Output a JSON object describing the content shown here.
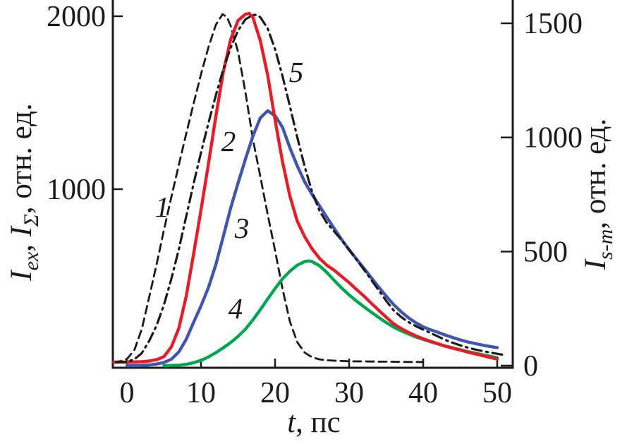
{
  "figure": {
    "background": "#ffffff",
    "axis_color": "#1a1a1a",
    "x_axis": {
      "label_segments": [
        {
          "text": "t",
          "italic": true,
          "sub": false
        },
        {
          "text": ", пс",
          "italic": false,
          "sub": false
        }
      ],
      "tick_values": [
        0,
        10,
        20,
        30,
        40,
        50
      ]
    },
    "y_axis_left": {
      "label_segments": [
        {
          "text": "I",
          "italic": true,
          "sub": false
        },
        {
          "text": "ex",
          "italic": true,
          "sub": true
        },
        {
          "text": ", ",
          "italic": false,
          "sub": false
        },
        {
          "text": "I",
          "italic": true,
          "sub": false
        },
        {
          "text": "Σ",
          "italic": true,
          "sub": true
        },
        {
          "text": ", отн. ед.",
          "italic": false,
          "sub": false
        }
      ],
      "tick_values": [
        1000,
        2000
      ]
    },
    "y_axis_right": {
      "label_segments": [
        {
          "text": "I",
          "italic": true,
          "sub": false
        },
        {
          "text": "s-m",
          "italic": true,
          "sub": true
        },
        {
          "text": ", отн. ед.",
          "italic": false,
          "sub": false
        }
      ],
      "tick_values": [
        0,
        500,
        1000,
        1500
      ]
    }
  },
  "chart_data": {
    "type": "line",
    "title": "",
    "xlabel": "t, пс",
    "ylabel_left": "Iex, IΣ, отн. ед.",
    "ylabel_right": "Is-m, отн. ед.",
    "x_range": [
      -2,
      52.3
    ],
    "y_left_range": [
      0,
      2100
    ],
    "y_right_range": [
      0,
      1560
    ],
    "grid": false,
    "legend": "none (curves numbered 1–5 on plot)",
    "series": [
      {
        "label": "1",
        "style": "dashed",
        "color": "#1a1a1a",
        "axis": "left",
        "points": [
          [
            -1.8,
            0
          ],
          [
            -1,
            5
          ],
          [
            0,
            18
          ],
          [
            1,
            70
          ],
          [
            2,
            190
          ],
          [
            3,
            375
          ],
          [
            4,
            565
          ],
          [
            5,
            765
          ],
          [
            6,
            955
          ],
          [
            7,
            1140
          ],
          [
            8,
            1320
          ],
          [
            9,
            1495
          ],
          [
            10,
            1665
          ],
          [
            11,
            1820
          ],
          [
            12,
            1950
          ],
          [
            12.9,
            2012
          ],
          [
            13.5,
            1995
          ],
          [
            14,
            1945
          ],
          [
            15,
            1795
          ],
          [
            16,
            1560
          ],
          [
            17,
            1290
          ],
          [
            18,
            1075
          ],
          [
            19,
            855
          ],
          [
            20,
            645
          ],
          [
            21,
            425
          ],
          [
            22,
            235
          ],
          [
            23,
            115
          ],
          [
            24,
            55
          ],
          [
            25,
            28
          ],
          [
            26,
            16
          ],
          [
            27,
            11
          ],
          [
            28,
            8
          ],
          [
            30,
            5
          ],
          [
            32,
            4
          ],
          [
            34,
            3
          ],
          [
            36,
            2
          ],
          [
            38,
            1
          ],
          [
            40,
            1
          ]
        ]
      },
      {
        "label": "2",
        "style": "solid",
        "color": "#e81c24",
        "axis": "left",
        "points": [
          [
            -1.8,
            0
          ],
          [
            0,
            0
          ],
          [
            2,
            2
          ],
          [
            3,
            6
          ],
          [
            4,
            14
          ],
          [
            5,
            32
          ],
          [
            6,
            88
          ],
          [
            7,
            195
          ],
          [
            8,
            380
          ],
          [
            9,
            625
          ],
          [
            10,
            880
          ],
          [
            11,
            1145
          ],
          [
            12,
            1420
          ],
          [
            13,
            1675
          ],
          [
            14,
            1865
          ],
          [
            15,
            1975
          ],
          [
            16,
            2012
          ],
          [
            16.5,
            2016
          ],
          [
            17,
            1995
          ],
          [
            18,
            1860
          ],
          [
            19,
            1660
          ],
          [
            20,
            1400
          ],
          [
            21,
            1160
          ],
          [
            22,
            960
          ],
          [
            23,
            815
          ],
          [
            24,
            725
          ],
          [
            25,
            655
          ],
          [
            26,
            600
          ],
          [
            27,
            560
          ],
          [
            28,
            530
          ],
          [
            29,
            495
          ],
          [
            30,
            460
          ],
          [
            31,
            420
          ],
          [
            32,
            382
          ],
          [
            33,
            340
          ],
          [
            34,
            300
          ],
          [
            35,
            260
          ],
          [
            36,
            222
          ],
          [
            37,
            195
          ],
          [
            38,
            172
          ],
          [
            39,
            152
          ],
          [
            40,
            135
          ],
          [
            41,
            120
          ],
          [
            42,
            106
          ],
          [
            43,
            92
          ],
          [
            44,
            80
          ],
          [
            45,
            70
          ],
          [
            46,
            58
          ],
          [
            47,
            48
          ],
          [
            48,
            38
          ],
          [
            49,
            27
          ],
          [
            50,
            18
          ]
        ]
      },
      {
        "label": "3",
        "style": "solid",
        "color": "#4055b0",
        "axis": "right",
        "points": [
          [
            0,
            0
          ],
          [
            2,
            1
          ],
          [
            3,
            3
          ],
          [
            4,
            7
          ],
          [
            5,
            14
          ],
          [
            6,
            28
          ],
          [
            7,
            60
          ],
          [
            8,
            115
          ],
          [
            9,
            190
          ],
          [
            10,
            262
          ],
          [
            11,
            342
          ],
          [
            12,
            442
          ],
          [
            13,
            565
          ],
          [
            14,
            690
          ],
          [
            15,
            800
          ],
          [
            16,
            905
          ],
          [
            17,
            1005
          ],
          [
            18,
            1085
          ],
          [
            19,
            1117
          ],
          [
            20,
            1095
          ],
          [
            21,
            1045
          ],
          [
            22,
            955
          ],
          [
            23,
            875
          ],
          [
            24,
            805
          ],
          [
            25,
            750
          ],
          [
            26,
            700
          ],
          [
            27,
            650
          ],
          [
            28,
            600
          ],
          [
            29,
            552
          ],
          [
            30,
            508
          ],
          [
            31,
            467
          ],
          [
            32,
            427
          ],
          [
            33,
            385
          ],
          [
            34,
            344
          ],
          [
            35,
            305
          ],
          [
            36,
            268
          ],
          [
            37,
            237
          ],
          [
            38,
            210
          ],
          [
            39,
            188
          ],
          [
            40,
            170
          ],
          [
            41,
            157
          ],
          [
            42,
            146
          ],
          [
            43,
            134
          ],
          [
            44,
            123
          ],
          [
            45,
            113
          ],
          [
            46,
            104
          ],
          [
            47,
            97
          ],
          [
            48,
            90
          ],
          [
            49,
            84
          ],
          [
            50,
            79
          ]
        ]
      },
      {
        "label": "4",
        "style": "solid",
        "color": "#00a650",
        "axis": "right",
        "points": [
          [
            5,
            0
          ],
          [
            7,
            2
          ],
          [
            8,
            6
          ],
          [
            9,
            13
          ],
          [
            10,
            23
          ],
          [
            11,
            38
          ],
          [
            12,
            57
          ],
          [
            13,
            78
          ],
          [
            14,
            101
          ],
          [
            15,
            128
          ],
          [
            16,
            160
          ],
          [
            17,
            200
          ],
          [
            18,
            245
          ],
          [
            19,
            292
          ],
          [
            20,
            338
          ],
          [
            21,
            380
          ],
          [
            22,
            414
          ],
          [
            23,
            440
          ],
          [
            24,
            456
          ],
          [
            24.6,
            459
          ],
          [
            25,
            456
          ],
          [
            26,
            438
          ],
          [
            27,
            408
          ],
          [
            28,
            373
          ],
          [
            29,
            340
          ],
          [
            30,
            310
          ],
          [
            31,
            283
          ],
          [
            32,
            258
          ],
          [
            33,
            234
          ],
          [
            34,
            211
          ],
          [
            35,
            189
          ],
          [
            36,
            169
          ],
          [
            37,
            153
          ],
          [
            38,
            139
          ],
          [
            39,
            126
          ],
          [
            40,
            115
          ],
          [
            41,
            105
          ],
          [
            42,
            95
          ],
          [
            43,
            86
          ],
          [
            44,
            78
          ],
          [
            45,
            70
          ],
          [
            46,
            62
          ],
          [
            47,
            55
          ],
          [
            48,
            48
          ],
          [
            49,
            41
          ],
          [
            50,
            35
          ]
        ]
      },
      {
        "label": "5",
        "style": "dash-dot",
        "color": "#1a1a1a",
        "axis": "left",
        "points": [
          [
            -1.5,
            0
          ],
          [
            0,
            2
          ],
          [
            1,
            16
          ],
          [
            2,
            52
          ],
          [
            3,
            122
          ],
          [
            4,
            212
          ],
          [
            5,
            332
          ],
          [
            6,
            482
          ],
          [
            7,
            652
          ],
          [
            8,
            842
          ],
          [
            9,
            1032
          ],
          [
            10,
            1212
          ],
          [
            11,
            1382
          ],
          [
            12,
            1542
          ],
          [
            13,
            1692
          ],
          [
            14,
            1817
          ],
          [
            15,
            1917
          ],
          [
            16,
            1982
          ],
          [
            17,
            2007
          ],
          [
            17.5,
            2008
          ],
          [
            18,
            1995
          ],
          [
            19,
            1930
          ],
          [
            20,
            1810
          ],
          [
            21,
            1655
          ],
          [
            22,
            1480
          ],
          [
            23,
            1300
          ],
          [
            24,
            1130
          ],
          [
            25,
            985
          ],
          [
            26,
            875
          ],
          [
            27,
            805
          ],
          [
            28,
            755
          ],
          [
            29,
            705
          ],
          [
            30,
            650
          ],
          [
            31,
            592
          ],
          [
            32,
            535
          ],
          [
            33,
            475
          ],
          [
            34,
            415
          ],
          [
            35,
            355
          ],
          [
            36,
            300
          ],
          [
            37,
            262
          ],
          [
            38,
            232
          ],
          [
            39,
            208
          ],
          [
            40,
            188
          ],
          [
            41,
            168
          ],
          [
            42,
            148
          ],
          [
            43,
            128
          ],
          [
            44,
            112
          ],
          [
            45,
            97
          ],
          [
            46,
            84
          ],
          [
            47,
            73
          ],
          [
            48,
            64
          ],
          [
            49,
            56
          ],
          [
            50,
            48
          ],
          [
            51,
            41
          ]
        ]
      }
    ]
  }
}
